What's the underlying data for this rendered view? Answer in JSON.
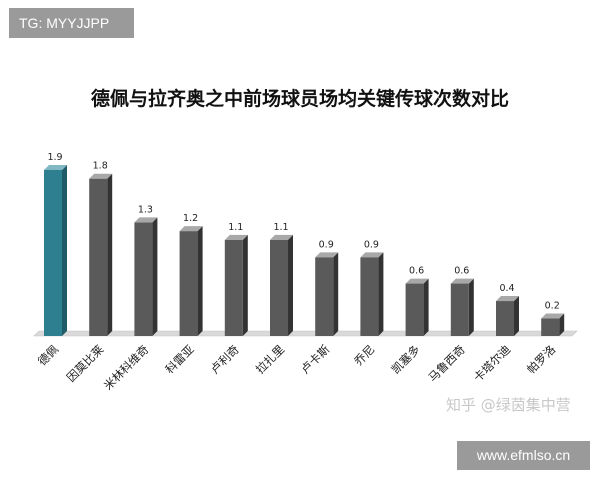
{
  "watermark_top": "TG: MYYJJPP",
  "watermark_bottom": "www.efmlso.cn",
  "watermark_zhihu": "知乎 @绿茵集中营",
  "colors": {
    "highlight_front": "#2e7f8f",
    "highlight_side": "#1f5c67",
    "highlight_top": "#7fb7c2",
    "bar_front": "#5a5a5a",
    "bar_side": "#333333",
    "bar_top": "#a8a8a8",
    "floor": "#d9d9d9"
  },
  "chart_data": {
    "type": "bar",
    "title": "德佩与拉齐奥之中前场球员场均关键传球次数对比",
    "categories": [
      "德佩",
      "因莫比莱",
      "米林科维奇",
      "科雷亚",
      "卢利奇",
      "拉扎里",
      "卢卡斯",
      "乔尼",
      "凯塞多",
      "马鲁西奇",
      "卡塔尔迪",
      "帕罗洛"
    ],
    "values": [
      1.9,
      1.8,
      1.3,
      1.2,
      1.1,
      1.1,
      0.9,
      0.9,
      0.6,
      0.6,
      0.4,
      0.2
    ],
    "value_labels": [
      "1.9",
      "1.8",
      "1.3",
      "1.2",
      "1.1",
      "1.1",
      "0.9",
      "0.9",
      "0.6",
      "0.6",
      "0.4",
      "0.2"
    ],
    "highlight_index": 0,
    "ylim": [
      0,
      1.9
    ],
    "xlabel": "",
    "ylabel": "",
    "grid": false,
    "legend": "none"
  }
}
